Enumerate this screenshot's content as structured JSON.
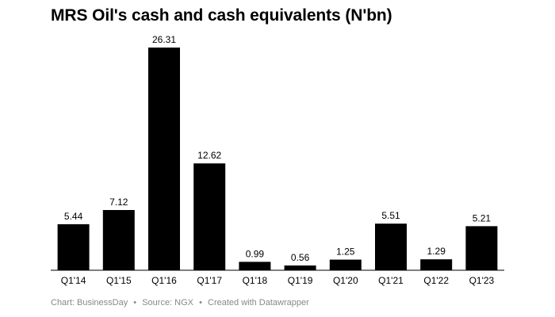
{
  "chart_data": {
    "type": "bar",
    "title": "MRS Oil's cash and cash equivalents (N'bn)",
    "categories": [
      "Q1'14",
      "Q1'15",
      "Q1'16",
      "Q1'17",
      "Q1'18",
      "Q1'19",
      "Q1'20",
      "Q1'21",
      "Q1'22",
      "Q1'23"
    ],
    "values": [
      5.44,
      7.12,
      26.31,
      12.62,
      0.99,
      0.56,
      1.25,
      5.51,
      1.29,
      5.21
    ],
    "value_labels": [
      "5.44",
      "7.12",
      "26.31",
      "12.62",
      "0.99",
      "0.56",
      "1.25",
      "5.51",
      "1.29",
      "5.21"
    ],
    "xlabel": "",
    "ylabel": "",
    "ylim": [
      0,
      26.31
    ],
    "grid": false,
    "bar_color": "#000000"
  },
  "footer": {
    "chart_credit": "Chart: BusinessDay",
    "separator": "•",
    "source": "Source: NGX",
    "created_with": "Created with Datawrapper"
  }
}
